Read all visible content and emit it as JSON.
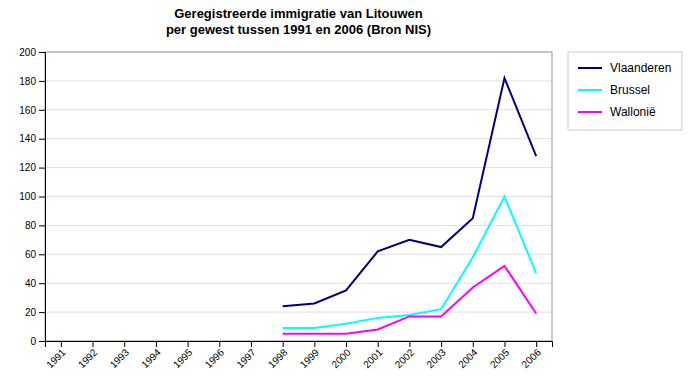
{
  "chart_data": {
    "type": "line",
    "title": "Geregistreerde immigratie van Litouwen\nper gewest tussen 1991 en 2006 (Bron NIS)",
    "x": [
      1991,
      1992,
      1993,
      1994,
      1995,
      1996,
      1997,
      1998,
      1999,
      2000,
      2001,
      2002,
      2003,
      2004,
      2005,
      2006
    ],
    "series": [
      {
        "name": "Vlaanderen",
        "color": "#000080",
        "values": [
          null,
          null,
          null,
          null,
          null,
          null,
          null,
          24,
          26,
          35,
          62,
          70,
          65,
          85,
          182,
          128
        ]
      },
      {
        "name": "Brussel",
        "color": "#00FFFF",
        "values": [
          null,
          null,
          null,
          null,
          null,
          null,
          null,
          9,
          9,
          12,
          16,
          18,
          22,
          58,
          100,
          47
        ]
      },
      {
        "name": "Wallonië",
        "color": "#FF00FF",
        "values": [
          null,
          null,
          null,
          null,
          null,
          null,
          null,
          5,
          5,
          5,
          8,
          17,
          17,
          37,
          52,
          19
        ]
      }
    ],
    "xlim": [
      1990.5,
      2006.5
    ],
    "xticks": [
      1991,
      1992,
      1993,
      1994,
      1995,
      1996,
      1997,
      1998,
      1999,
      2000,
      2001,
      2002,
      2003,
      2004,
      2005,
      2006
    ],
    "ylim": [
      0,
      200
    ],
    "yticks": [
      0,
      20,
      40,
      60,
      80,
      100,
      120,
      140,
      160,
      180,
      200
    ],
    "grid": true,
    "legend": "right"
  }
}
